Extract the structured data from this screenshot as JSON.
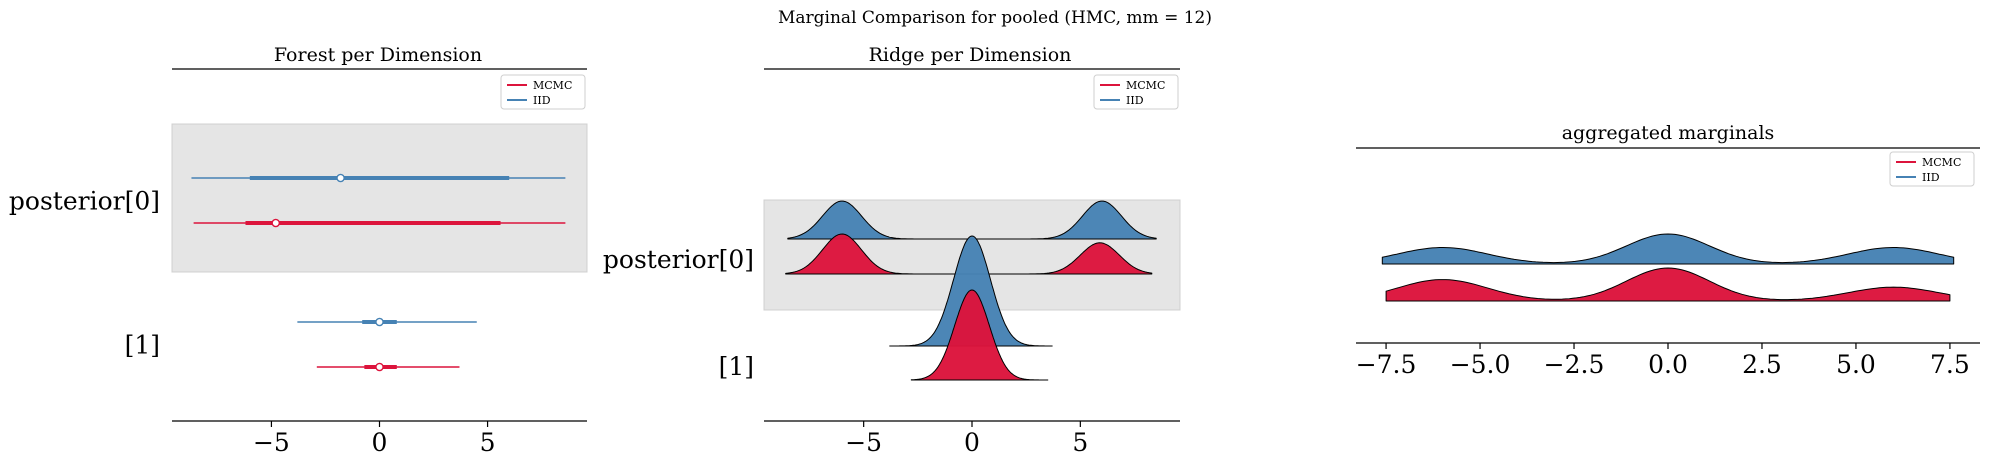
{
  "figure": {
    "title": "Marginal Comparison for pooled (HMC, mm = 12)"
  },
  "colors": {
    "mcmc": "#dc143c",
    "iid": "#4682b4",
    "band": "#e5e5e5",
    "band_edge": "#d0d0d0"
  },
  "chart_data": [
    {
      "type": "forest",
      "title": "Forest per Dimension",
      "legend": [
        "MCMC",
        "IID"
      ],
      "legend_position": "top-right",
      "xticks": [
        -5,
        0,
        5
      ],
      "xtick_labels": [
        "−5",
        "0",
        "5"
      ],
      "xlim": [
        -9.6,
        9.6
      ],
      "rows": [
        {
          "label": "posterior[0]",
          "shaded": true,
          "series": [
            {
              "name": "IID",
              "median": -1.8,
              "hdi_94": [
                -8.7,
                8.6
              ],
              "iqr": [
                -6.0,
                6.0
              ]
            },
            {
              "name": "MCMC",
              "median": -4.8,
              "hdi_94": [
                -8.6,
                8.6
              ],
              "iqr": [
                -6.2,
                5.6
              ]
            }
          ]
        },
        {
          "label": "[1]",
          "shaded": false,
          "series": [
            {
              "name": "IID",
              "median": 0.0,
              "hdi_94": [
                -3.8,
                4.5
              ],
              "iqr": [
                -0.8,
                0.8
              ]
            },
            {
              "name": "MCMC",
              "median": 0.0,
              "hdi_94": [
                -2.9,
                3.7
              ],
              "iqr": [
                -0.7,
                0.8
              ]
            }
          ]
        }
      ]
    },
    {
      "type": "ridge",
      "title": "Ridge per Dimension",
      "legend": [
        "MCMC",
        "IID"
      ],
      "legend_position": "top-right",
      "xticks": [
        -5,
        0,
        5
      ],
      "xtick_labels": [
        "−5",
        "0",
        "5"
      ],
      "xlim": [
        -9.6,
        9.6
      ],
      "rows": [
        {
          "label": "posterior[0]",
          "shaded": true,
          "series": [
            {
              "name": "IID",
              "range": [
                -8.5,
                8.5
              ],
              "modes": [
                {
                  "mu": -6.0,
                  "sd": 0.9,
                  "w": 1.0
                },
                {
                  "mu": 6.0,
                  "sd": 0.9,
                  "w": 1.0
                }
              ]
            },
            {
              "name": "MCMC",
              "range": [
                -8.6,
                8.3
              ],
              "modes": [
                {
                  "mu": -6.0,
                  "sd": 0.9,
                  "w": 1.0
                },
                {
                  "mu": 5.9,
                  "sd": 0.9,
                  "w": 0.78
                }
              ]
            }
          ]
        },
        {
          "label": "[1]",
          "shaded": false,
          "series": [
            {
              "name": "IID",
              "range": [
                -3.8,
                3.7
              ],
              "modes": [
                {
                  "mu": 0.0,
                  "sd": 0.85,
                  "w": 1.0
                }
              ]
            },
            {
              "name": "MCMC",
              "range": [
                -2.8,
                3.5
              ],
              "modes": [
                {
                  "mu": 0.0,
                  "sd": 0.8,
                  "w": 1.0
                }
              ]
            }
          ]
        }
      ]
    },
    {
      "type": "ridge",
      "title": "aggregated marginals",
      "legend": [
        "MCMC",
        "IID"
      ],
      "legend_position": "top-right",
      "xticks": [
        -7.5,
        -5.0,
        -2.5,
        0.0,
        2.5,
        5.0,
        7.5
      ],
      "xtick_labels": [
        "−7.5",
        "−5.0",
        "−2.5",
        "0.0",
        "2.5",
        "5.0",
        "7.5"
      ],
      "xlim": [
        -8.3,
        8.3
      ],
      "series": [
        {
          "name": "IID",
          "range": [
            -7.6,
            7.6
          ],
          "modes": [
            {
              "mu": -6.0,
              "sd": 1.2,
              "w": 0.55
            },
            {
              "mu": 0.0,
              "sd": 1.1,
              "w": 1.0
            },
            {
              "mu": 6.0,
              "sd": 1.2,
              "w": 0.55
            }
          ]
        },
        {
          "name": "MCMC",
          "range": [
            -7.5,
            7.5
          ],
          "modes": [
            {
              "mu": -6.0,
              "sd": 1.2,
              "w": 0.65
            },
            {
              "mu": 0.0,
              "sd": 1.1,
              "w": 1.0
            },
            {
              "mu": 6.0,
              "sd": 1.2,
              "w": 0.42
            }
          ]
        }
      ]
    }
  ]
}
